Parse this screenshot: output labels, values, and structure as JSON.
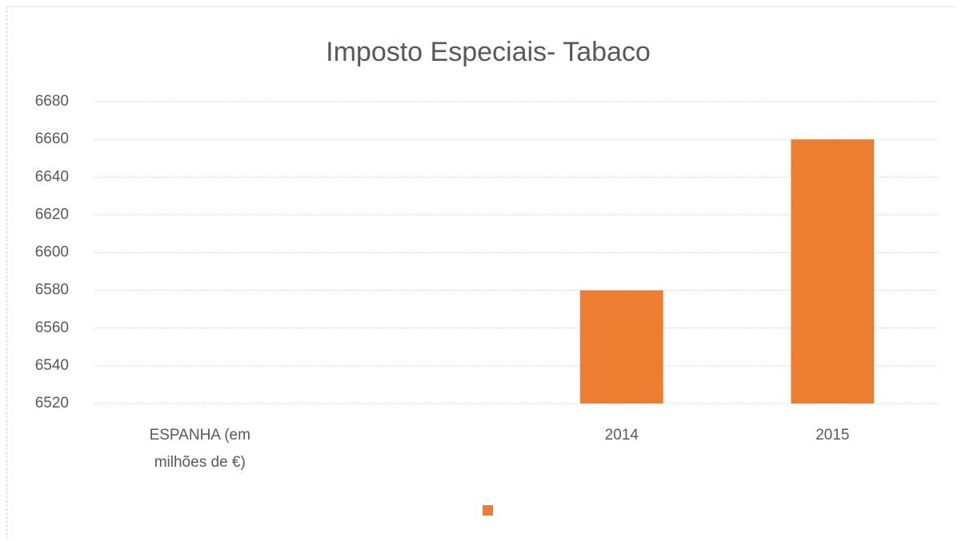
{
  "chart_data": {
    "type": "bar",
    "title": "Imposto Especiais- Tabaco",
    "categories": [
      "ESPANHA (em milhões de €)",
      null,
      "2014",
      "2015"
    ],
    "values": [
      null,
      null,
      6580,
      6660
    ],
    "color": "#ed7d31",
    "ylim": [
      6520,
      6680
    ],
    "yticks": [
      6520,
      6540,
      6560,
      6580,
      6600,
      6620,
      6640,
      6660,
      6680
    ],
    "grid": true,
    "legend": "bottom"
  }
}
